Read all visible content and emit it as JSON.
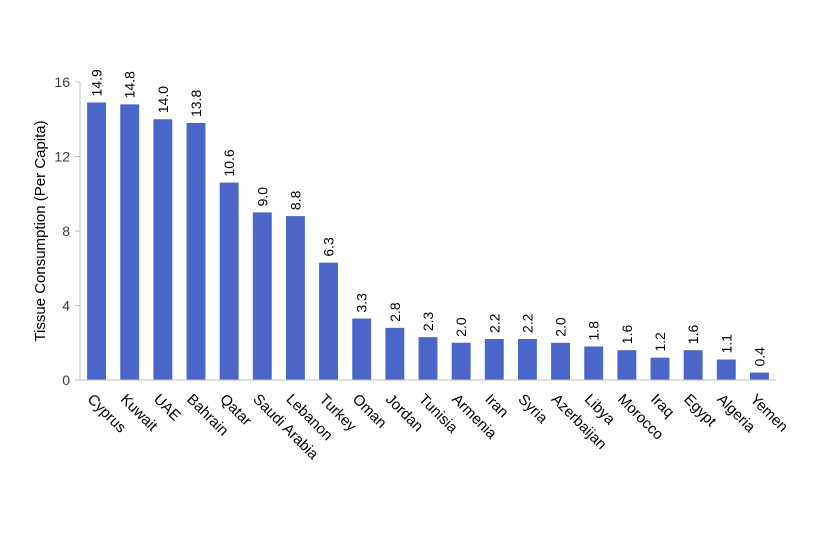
{
  "chart_data": {
    "type": "bar",
    "title": "",
    "xlabel": "",
    "ylabel": "Tissue Consumption (Per Capita)",
    "ylim": [
      0,
      16
    ],
    "yticks": [
      "0",
      "4",
      "8",
      "12",
      "16"
    ],
    "grid": false,
    "legend": "none",
    "bar_color": "#4A66C8",
    "categories": [
      "Cyprus",
      "Kuwait",
      "UAE",
      "Bahrain",
      "Qatar",
      "Saudi Arabia",
      "Lebanon",
      "Turkey",
      "Oman",
      "Jordan",
      "Tunisia",
      "Armenia",
      "Iran",
      "Syria",
      "Azerbaijan",
      "Libya",
      "Morocco",
      "Iraq",
      "Egypt",
      "Algeria",
      "Yemen"
    ],
    "values": [
      14.9,
      14.8,
      14.0,
      13.8,
      10.6,
      9.0,
      8.8,
      6.3,
      3.3,
      2.8,
      2.3,
      2.0,
      2.2,
      2.2,
      2.0,
      1.8,
      1.6,
      1.2,
      1.6,
      1.1,
      0.4
    ],
    "data_labels": [
      "14.9",
      "14.8",
      "14.0",
      "13.8",
      "10.6",
      "9.0",
      "8.8",
      "6.3",
      "3.3",
      "2.8",
      "2.3",
      "2.0",
      "2.2",
      "2.2",
      "2.0",
      "1.8",
      "1.6",
      "1.2",
      "1.6",
      "1.1",
      "0.4"
    ]
  }
}
